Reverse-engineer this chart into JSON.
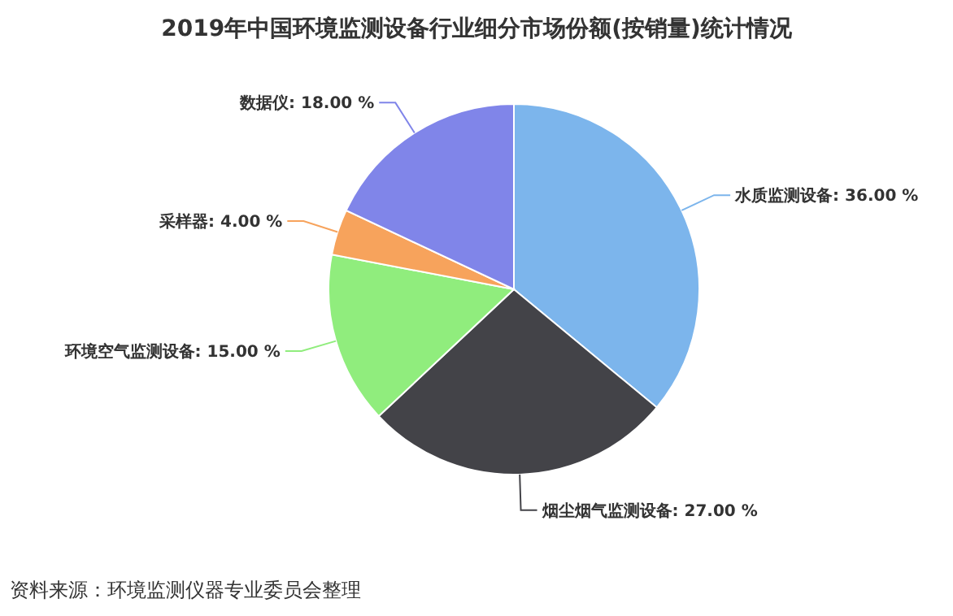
{
  "chart_data": {
    "type": "pie",
    "title": "2019年中国环境监测设备行业细分市场份额(按销量)统计情况",
    "categories": [
      "水质监测设备",
      "烟尘烟气监测设备",
      "环境空气监测设备",
      "采样器",
      "数据仪"
    ],
    "values": [
      36,
      27,
      15,
      4,
      18
    ],
    "colors": [
      "#7cb5ec",
      "#434348",
      "#90ed7d",
      "#f7a35c",
      "#8085e9"
    ],
    "value_labels": [
      "36.00 %",
      "27.00 %",
      "15.00 %",
      "4.00 %",
      "18.00 %"
    ],
    "annotations": [
      "资料来源：环境监测仪器专业委员会整理"
    ]
  }
}
